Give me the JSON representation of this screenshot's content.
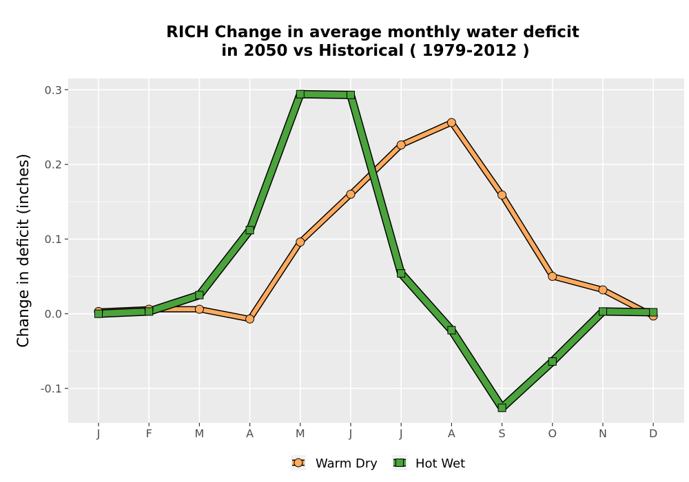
{
  "chart_data": {
    "type": "line",
    "title_line1": "RICH  Change in average monthly water deficit",
    "title_line2": "in 2050 vs Historical ( 1979-2012 )",
    "xlabel": "",
    "ylabel": "Change in deficit (inches)",
    "categories": [
      "J",
      "F",
      "M",
      "A",
      "M",
      "J",
      "J",
      "A",
      "S",
      "O",
      "N",
      "D"
    ],
    "y_ticks": [
      -0.1,
      0.0,
      0.1,
      0.2,
      0.3
    ],
    "y_tick_labels": [
      "-0.1",
      "0.0",
      "0.1",
      "0.2",
      "0.3"
    ],
    "ylim": [
      -0.146,
      0.315
    ],
    "grid": true,
    "legend_position": "bottom",
    "series": [
      {
        "name": "Warm Dry",
        "marker": "circle",
        "color": "#fdaa5e",
        "values": [
          0.003,
          0.006,
          0.006,
          -0.007,
          0.096,
          0.16,
          0.226,
          0.256,
          0.159,
          0.05,
          0.032,
          -0.003
        ]
      },
      {
        "name": "Hot Wet",
        "marker": "square",
        "color": "#4aa33b",
        "values": [
          0.0,
          0.003,
          0.025,
          0.112,
          0.294,
          0.293,
          0.054,
          -0.022,
          -0.126,
          -0.064,
          0.003,
          0.002
        ]
      }
    ]
  }
}
